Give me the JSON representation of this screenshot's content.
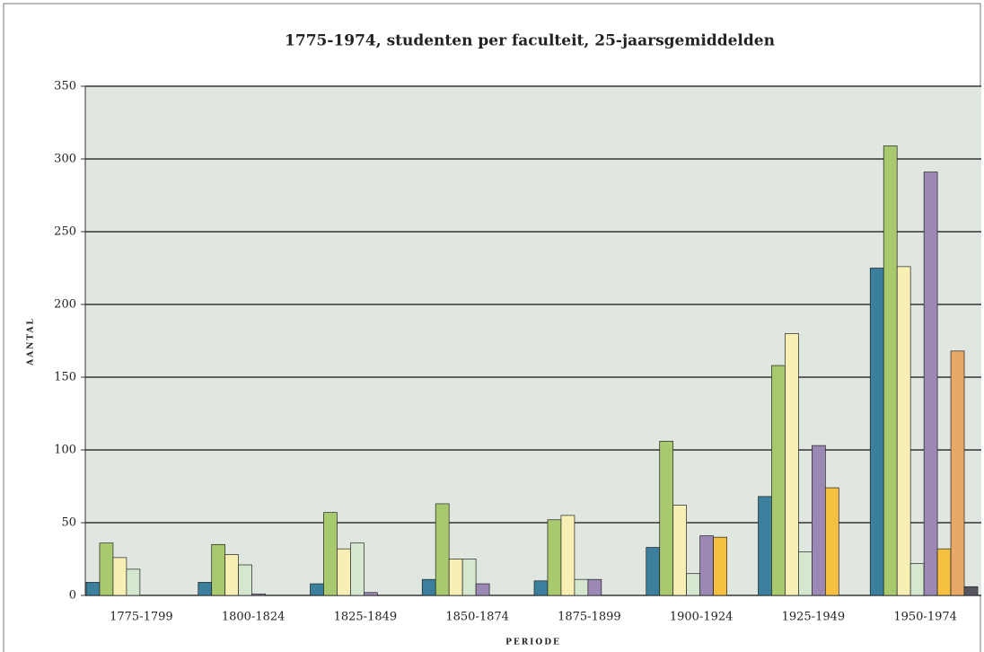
{
  "chart_data": {
    "type": "bar",
    "title": "1775-1974, studenten per faculteit, 25-jaarsgemiddelden",
    "x_label": "PERIODE",
    "y_label": "AANTAL",
    "categories": [
      "1775-1799",
      "1800-1824",
      "1825-1849",
      "1850-1874",
      "1875-1899",
      "1900-1924",
      "1925-1949",
      "1950-1974"
    ],
    "series": [
      {
        "color": "#3b7f9c",
        "values": [
          9,
          9,
          8,
          11,
          10,
          33,
          68,
          225
        ]
      },
      {
        "color": "#a9c96f",
        "values": [
          36,
          35,
          57,
          63,
          52,
          106,
          158,
          309
        ]
      },
      {
        "color": "#f7efb3",
        "values": [
          26,
          28,
          32,
          25,
          55,
          62,
          180,
          226
        ]
      },
      {
        "color": "#d5e8cf",
        "values": [
          18,
          21,
          36,
          25,
          11,
          15,
          30,
          22
        ]
      },
      {
        "color": "#9c88b5",
        "values": [
          null,
          1,
          2,
          8,
          11,
          41,
          103,
          291
        ]
      },
      {
        "color": "#f5c040",
        "values": [
          null,
          null,
          null,
          null,
          null,
          40,
          74,
          32
        ]
      },
      {
        "color": "#e8a868",
        "values": [
          null,
          null,
          null,
          null,
          null,
          null,
          null,
          168
        ]
      },
      {
        "color": "#555560",
        "values": [
          null,
          null,
          null,
          null,
          null,
          null,
          null,
          6
        ]
      }
    ],
    "ylim": [
      0,
      350
    ],
    "yticks": [
      0,
      50,
      100,
      150,
      200,
      250,
      300,
      350
    ],
    "grid": true
  }
}
